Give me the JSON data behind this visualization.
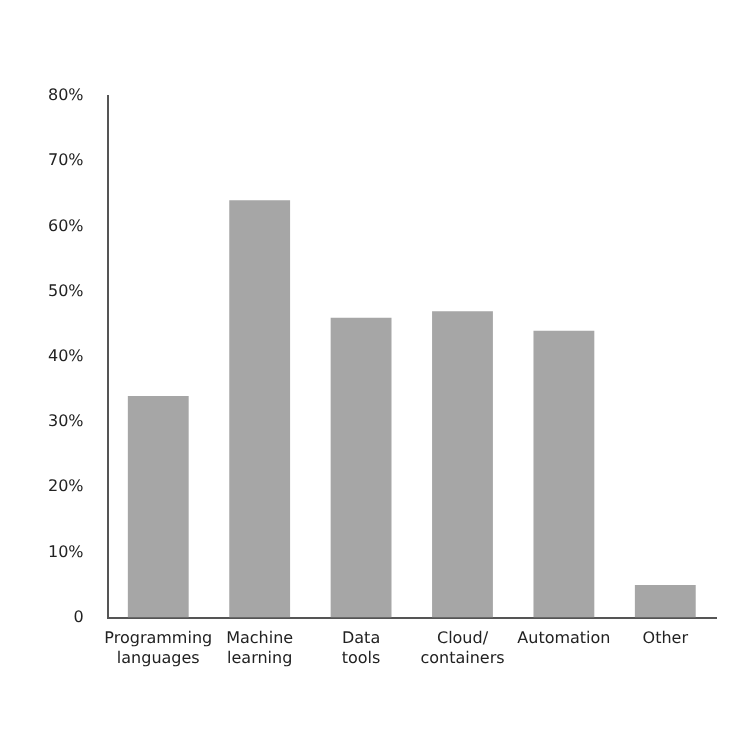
{
  "chart_data": {
    "type": "bar",
    "categories": [
      "Programming languages",
      "Machine learning",
      "Data tools",
      "Cloud/ containers",
      "Automation",
      "Other"
    ],
    "values": [
      34,
      64,
      46,
      47,
      44,
      5
    ],
    "color": "#a6a6a6",
    "ylim": [
      0,
      80
    ],
    "yticks": [
      {
        "value": 0,
        "label": "0"
      },
      {
        "value": 10,
        "label": "10%"
      },
      {
        "value": 20,
        "label": "20%"
      },
      {
        "value": 30,
        "label": "30%"
      },
      {
        "value": 40,
        "label": "40%"
      },
      {
        "value": 50,
        "label": "50%"
      },
      {
        "value": 60,
        "label": "60%"
      },
      {
        "value": 70,
        "label": "70%"
      },
      {
        "value": 80,
        "label": "80%"
      }
    ],
    "grid": false,
    "legend": false
  }
}
